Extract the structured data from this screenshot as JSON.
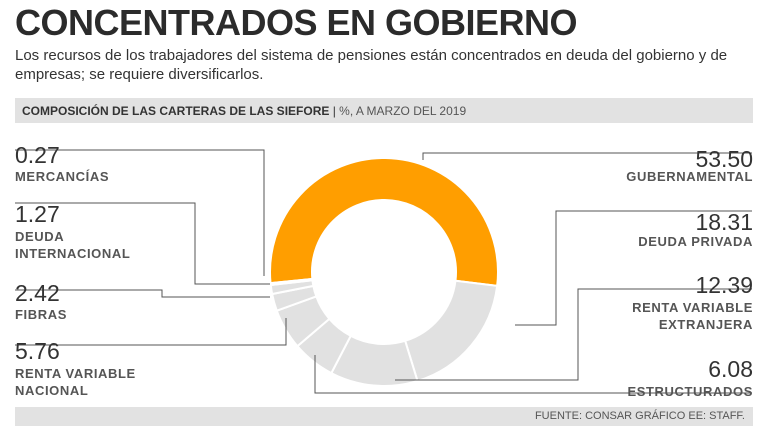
{
  "header": {
    "title": "CONCENTRADOS EN GOBIERNO",
    "subtitle": "Los recursos de los trabajadores del sistema de pensiones están concentrados en deuda del gobierno y de empresas; se requiere diversificarlos."
  },
  "section": {
    "title": "COMPOSICIÓN DE LAS CARTERAS DE LAS SIEFORE",
    "separator": "|",
    "unit": "%, A MARZO DEL 2019"
  },
  "footer": {
    "source": "FUENTE: CONSAR GRÁFICO EE: STAFF."
  },
  "colors": {
    "highlight": "#ff9e00",
    "others": "#e1e1e1",
    "leader": "#555555",
    "bar": "#e2e2e2"
  },
  "chart_data": {
    "type": "pie",
    "variant": "donut",
    "unit": "%",
    "slices": [
      {
        "label": "GUBERNAMENTAL",
        "display_value": "53.50",
        "value": 53.5,
        "highlight": true
      },
      {
        "label": "DEUDA PRIVADA",
        "display_value": "18.31",
        "value": 18.31,
        "highlight": false
      },
      {
        "label": "RENTA VARIABLE EXTRANJERA",
        "label_lines": [
          "RENTA VARIABLE",
          "EXTRANJERA"
        ],
        "display_value": "12.39",
        "value": 12.39,
        "highlight": false
      },
      {
        "label": "ESTRUCTURADOS",
        "display_value": "6.08",
        "value": 6.08,
        "highlight": false
      },
      {
        "label": "RENTA VARIABLE NACIONAL",
        "label_lines": [
          "RENTA VARIABLE",
          "NACIONAL"
        ],
        "display_value": "5.76",
        "value": 5.76,
        "highlight": false
      },
      {
        "label": "FIBRAS",
        "display_value": "2.42",
        "value": 2.42,
        "highlight": false
      },
      {
        "label": "DEUDA INTERNACIONAL",
        "label_lines": [
          "DEUDA",
          "INTERNACIONAL"
        ],
        "display_value": "1.27",
        "value": 1.27,
        "highlight": false
      },
      {
        "label": "MERCANCÍAS",
        "display_value": "0.27",
        "value": 0.27,
        "highlight": false
      }
    ]
  }
}
